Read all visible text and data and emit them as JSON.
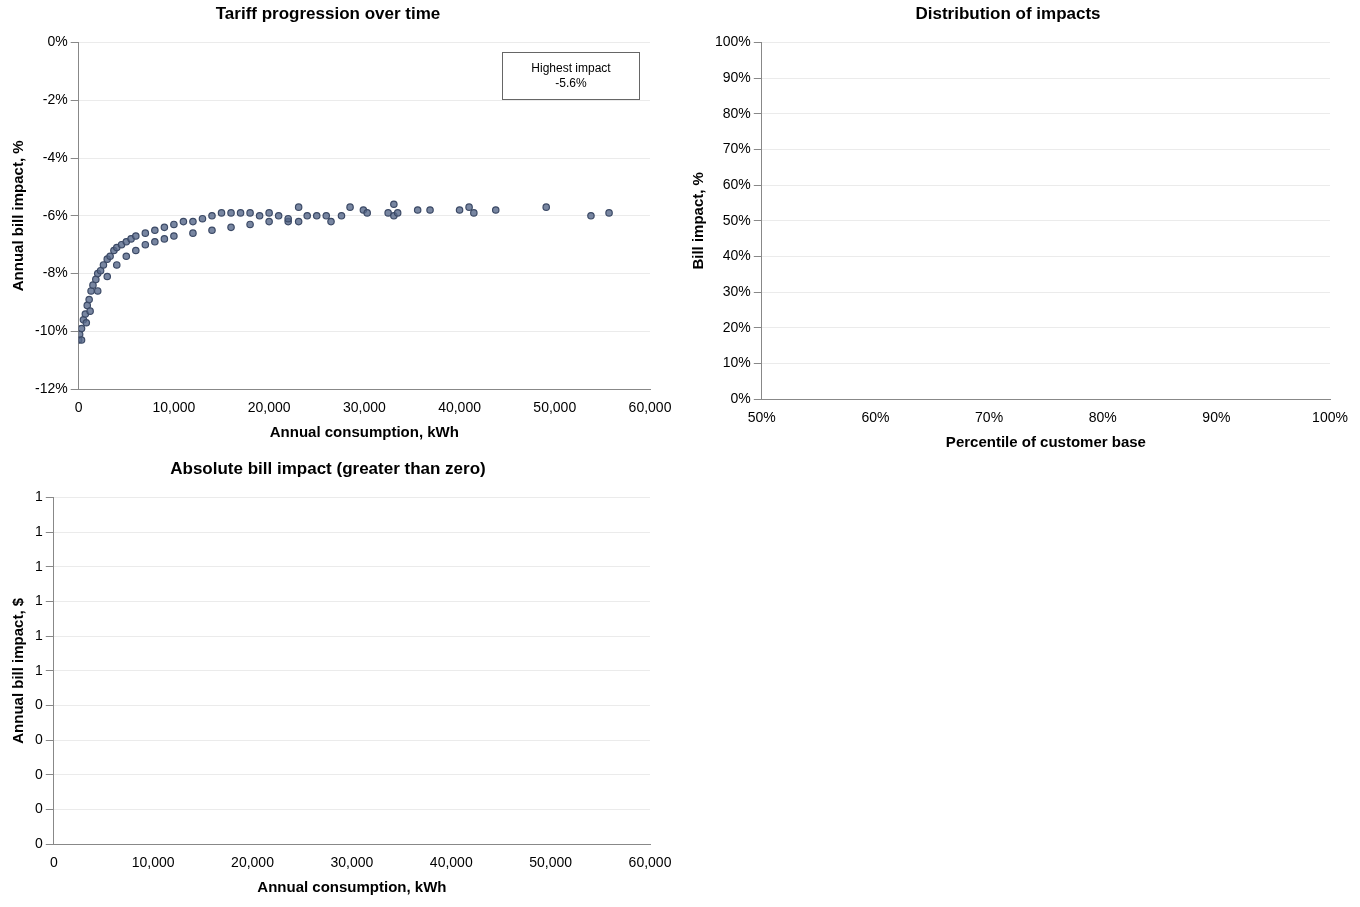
{
  "chart_data": [
    {
      "type": "scatter",
      "title": "Tariff progression over time",
      "xlabel": "Annual consumption, kWh",
      "ylabel": "Annual bill impact, %",
      "xlim": [
        0,
        60000
      ],
      "xticks": [
        0,
        {
          "value": 10000,
          "label": "10,000"
        },
        {
          "value": 20000,
          "label": "20,000"
        },
        {
          "value": 30000,
          "label": "30,000"
        },
        {
          "value": 40000,
          "label": "40,000"
        },
        {
          "value": 50000,
          "label": "50,000"
        },
        {
          "value": 60000,
          "label": "60,000"
        }
      ],
      "ylim": [
        -12,
        0
      ],
      "yticks": [
        {
          "value": -12,
          "label": "-12%"
        },
        {
          "value": -10,
          "label": "-10%"
        },
        {
          "value": -8,
          "label": "-8%"
        },
        {
          "value": -6,
          "label": "-6%"
        },
        {
          "value": -4,
          "label": "-4%"
        },
        {
          "value": -2,
          "label": "-2%"
        },
        {
          "value": 0,
          "label": "0%"
        }
      ],
      "grid": "y",
      "legend": false,
      "marker": "circle",
      "annotations": [
        "Highest impact\n-5.6%"
      ],
      "series": [
        {
          "color": "#56688a",
          "x": [
            0,
            100,
            300,
            500,
            700,
            900,
            1100,
            1300,
            1500,
            1800,
            2000,
            2300,
            2600,
            3000,
            3300,
            3700,
            4000,
            4500,
            5000,
            5500,
            6000,
            7000,
            8000,
            9000,
            10000,
            11000,
            12000,
            13000,
            14000,
            15000,
            16000,
            17000,
            18000,
            19000,
            20000,
            300,
            800,
            1200,
            2000,
            3000,
            4000,
            5000,
            6000,
            7000,
            8000,
            9000,
            10000,
            12000,
            14000,
            16000,
            18000,
            20000,
            22000,
            21000,
            22000,
            23100,
            23100,
            24000,
            25000,
            26000,
            26500,
            27600,
            28500,
            29900,
            30300,
            32500,
            33100,
            33100,
            33500,
            35600,
            36900,
            40000,
            41000,
            41500,
            43800,
            49100,
            53800,
            55700
          ],
          "values": [
            -10.3,
            -10.1,
            -9.9,
            -9.6,
            -9.4,
            -9.1,
            -8.9,
            -8.6,
            -8.4,
            -8.2,
            -8.0,
            -7.9,
            -7.7,
            -7.5,
            -7.4,
            -7.2,
            -7.1,
            -7.0,
            -6.9,
            -6.8,
            -6.7,
            -6.6,
            -6.5,
            -6.4,
            -6.3,
            -6.2,
            -6.2,
            -6.1,
            -6.0,
            -5.9,
            -5.9,
            -5.9,
            -5.9,
            -6.0,
            -5.9,
            -10.3,
            -9.7,
            -9.3,
            -8.6,
            -8.1,
            -7.7,
            -7.4,
            -7.2,
            -7.0,
            -6.9,
            -6.8,
            -6.7,
            -6.6,
            -6.5,
            -6.4,
            -6.3,
            -6.2,
            -6.2,
            -6.0,
            -6.1,
            -5.7,
            -6.2,
            -6.0,
            -6.0,
            -6.0,
            -6.2,
            -6.0,
            -5.7,
            -5.8,
            -5.9,
            -5.9,
            -5.6,
            -6.0,
            -5.9,
            -5.8,
            -5.8,
            -5.8,
            -5.7,
            -5.9,
            -5.8,
            -5.7,
            -6.0,
            -5.9
          ]
        }
      ]
    },
    {
      "type": "scatter",
      "title": "Distribution of impacts",
      "xlabel": "Percentile of customer base",
      "ylabel": "Bill impact, %",
      "xlim": [
        0.5,
        1
      ],
      "xticks": [
        {
          "value": 0.5,
          "label": "50%"
        },
        {
          "value": 0.6,
          "label": "60%"
        },
        {
          "value": 0.7,
          "label": "70%"
        },
        {
          "value": 0.8,
          "label": "80%"
        },
        {
          "value": 0.9,
          "label": "90%"
        },
        {
          "value": 1,
          "label": "100%"
        }
      ],
      "ylim": [
        0,
        1
      ],
      "yticks": [
        {
          "value": 0,
          "label": "0%"
        },
        {
          "value": 0.1,
          "label": "10%"
        },
        {
          "value": 0.2,
          "label": "20%"
        },
        {
          "value": 0.3,
          "label": "30%"
        },
        {
          "value": 0.4,
          "label": "40%"
        },
        {
          "value": 0.5,
          "label": "50%"
        },
        {
          "value": 0.6,
          "label": "60%"
        },
        {
          "value": 0.7,
          "label": "70%"
        },
        {
          "value": 0.8,
          "label": "80%"
        },
        {
          "value": 0.9,
          "label": "90%"
        },
        {
          "value": 1,
          "label": "100%"
        }
      ],
      "grid": "y",
      "legend": false
    },
    {
      "type": "scatter",
      "title": "Absolute bill impact (greater than zero)",
      "xlabel": "Annual consumption, kWh",
      "ylabel": "Annual bill impact, $",
      "xlim": [
        0,
        60000
      ],
      "xticks": [
        0,
        {
          "value": 10000,
          "label": "10,000"
        },
        {
          "value": 20000,
          "label": "20,000"
        },
        {
          "value": 30000,
          "label": "30,000"
        },
        {
          "value": 40000,
          "label": "40,000"
        },
        {
          "value": 50000,
          "label": "50,000"
        },
        {
          "value": 60000,
          "label": "60,000"
        }
      ],
      "ylim": [
        0,
        1
      ],
      "yticks": [
        0,
        {
          "value": 0.1,
          "label": "0"
        },
        {
          "value": 0.2,
          "label": "0"
        },
        {
          "value": 0.3,
          "label": "0"
        },
        {
          "value": 0.4,
          "label": "0"
        },
        {
          "value": 0.5,
          "label": "1"
        },
        {
          "value": 0.6,
          "label": "1"
        },
        {
          "value": 0.7,
          "label": "1"
        },
        {
          "value": 0.8,
          "label": "1"
        },
        {
          "value": 0.9,
          "label": "1"
        },
        1
      ],
      "grid": "y",
      "legend": false
    }
  ]
}
